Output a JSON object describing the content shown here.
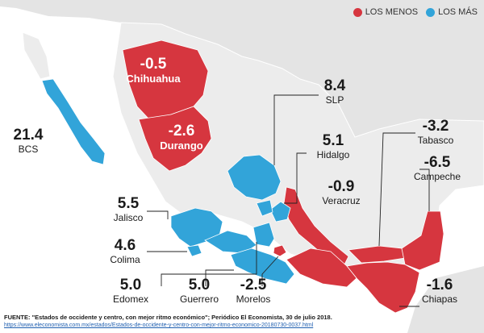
{
  "legend": {
    "less_label": "LOS MENOS",
    "more_label": "LOS MÁS",
    "less_color": "#d6363f",
    "more_color": "#32a4d9"
  },
  "colors": {
    "sea": "#ffffff",
    "neutral_land": "#ececec",
    "neighbor_land": "#e4e4e4",
    "border": "#ffffff",
    "leader": "#222222"
  },
  "states": {
    "chihuahua": {
      "value": "-0.5",
      "name": "Chihuahua",
      "group": "less"
    },
    "durango": {
      "value": "-2.6",
      "name": "Durango",
      "group": "less"
    },
    "bcs": {
      "value": "21.4",
      "name": "BCS",
      "group": "more"
    },
    "slp": {
      "value": "8.4",
      "name": "SLP",
      "group": "more"
    },
    "hidalgo": {
      "value": "5.1",
      "name": "Hidalgo",
      "group": "more"
    },
    "veracruz": {
      "value": "-0.9",
      "name": "Veracruz",
      "group": "less"
    },
    "tabasco": {
      "value": "-3.2",
      "name": "Tabasco",
      "group": "less"
    },
    "campeche": {
      "value": "-6.5",
      "name": "Campeche",
      "group": "less"
    },
    "jalisco": {
      "value": "5.5",
      "name": "Jalisco",
      "group": "more"
    },
    "colima": {
      "value": "4.6",
      "name": "Colima",
      "group": "more"
    },
    "edomex": {
      "value": "5.0",
      "name": "Edomex",
      "group": "more"
    },
    "guerrero": {
      "value": "5.0",
      "name": "Guerrero",
      "group": "more"
    },
    "morelos": {
      "value": "-2.5",
      "name": "Morelos",
      "group": "less"
    },
    "chiapas": {
      "value": "-1.6",
      "name": "Chiapas",
      "group": "less"
    }
  },
  "footer": {
    "source": "FUENTE: \"Estados de occidente y centro, con mejor ritmo económico\"; Periódico El Economista, 30 de julio 2018.",
    "url": "https://www.eleconomista.com.mx/estados/Estados-de-occidente-y-centro-con-mejor-ritmo-economico-20180730-0037.html"
  }
}
